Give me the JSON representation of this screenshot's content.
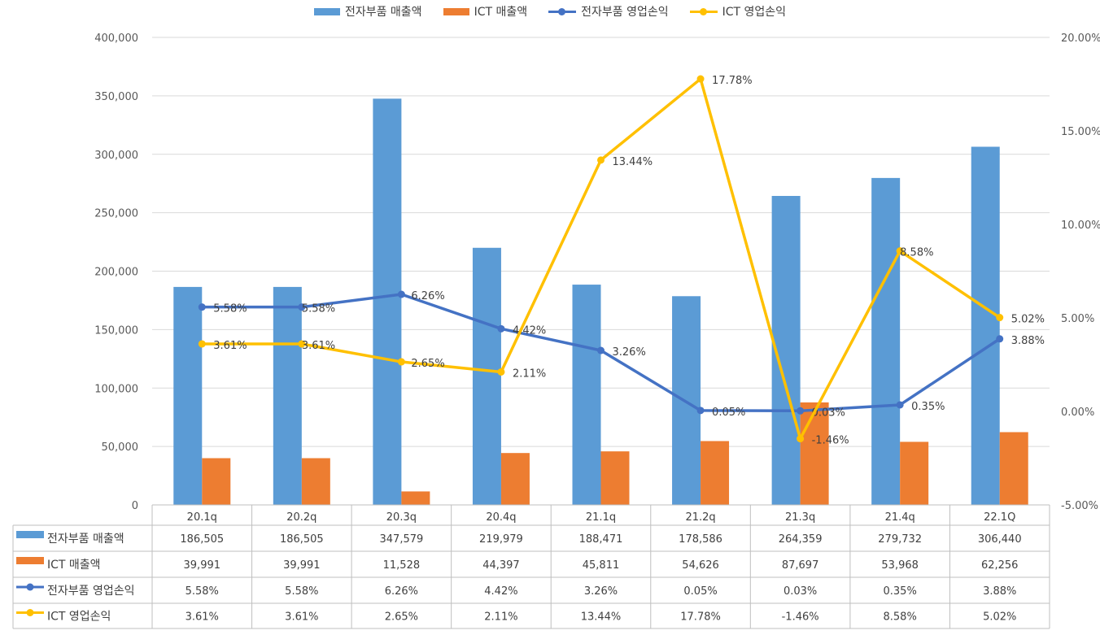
{
  "chart_data": {
    "type": "bar",
    "categories": [
      "20.1q",
      "20.2q",
      "20.3q",
      "20.4q",
      "21.1q",
      "21.2q",
      "21.3q",
      "21.4q",
      "22.1Q"
    ],
    "series": [
      {
        "name": "전자부품 매출액",
        "type": "bar",
        "axis": "left",
        "color": "#5B9BD5",
        "values": [
          186505,
          186505,
          347579,
          219979,
          188471,
          178586,
          264359,
          279732,
          306440
        ],
        "labels": [
          "186,505",
          "186,505",
          "347,579",
          "219,979",
          "188,471",
          "178,586",
          "264,359",
          "279,732",
          "306,440"
        ]
      },
      {
        "name": "ICT 매출액",
        "type": "bar",
        "axis": "left",
        "color": "#ED7D31",
        "values": [
          39991,
          39991,
          11528,
          44397,
          45811,
          54626,
          87697,
          53968,
          62256
        ],
        "labels": [
          "39,991",
          "39,991",
          "11,528",
          "44,397",
          "45,811",
          "54,626",
          "87,697",
          "53,968",
          "62,256"
        ]
      },
      {
        "name": "전자부품 영업손익",
        "type": "line",
        "axis": "right",
        "color": "#4472C4",
        "values": [
          5.58,
          5.58,
          6.26,
          4.42,
          3.26,
          0.05,
          0.03,
          0.35,
          3.88
        ],
        "labels": [
          "5.58%",
          "5.58%",
          "6.26%",
          "4.42%",
          "3.26%",
          "0.05%",
          "0.03%",
          "0.35%",
          "3.88%"
        ]
      },
      {
        "name": "ICT 영업손익",
        "type": "line",
        "axis": "right",
        "color": "#FFC000",
        "values": [
          3.61,
          3.61,
          2.65,
          2.11,
          13.44,
          17.78,
          -1.46,
          8.58,
          5.02
        ],
        "labels": [
          "3.61%",
          "3.61%",
          "2.65%",
          "2.11%",
          "13.44%",
          "17.78%",
          "-1.46%",
          "8.58%",
          "5.02%"
        ]
      }
    ],
    "left_axis": {
      "ylim": [
        0,
        400000
      ],
      "ticks": [
        "0",
        "50,000",
        "100,000",
        "150,000",
        "200,000",
        "250,000",
        "300,000",
        "350,000",
        "400,000"
      ]
    },
    "right_axis": {
      "ylim": [
        -5,
        20
      ],
      "ticks": [
        "-5.00%",
        "0.00%",
        "5.00%",
        "10.00%",
        "15.00%",
        "20.00%"
      ]
    },
    "grid": true,
    "legend": "top-center",
    "data_table": true
  }
}
